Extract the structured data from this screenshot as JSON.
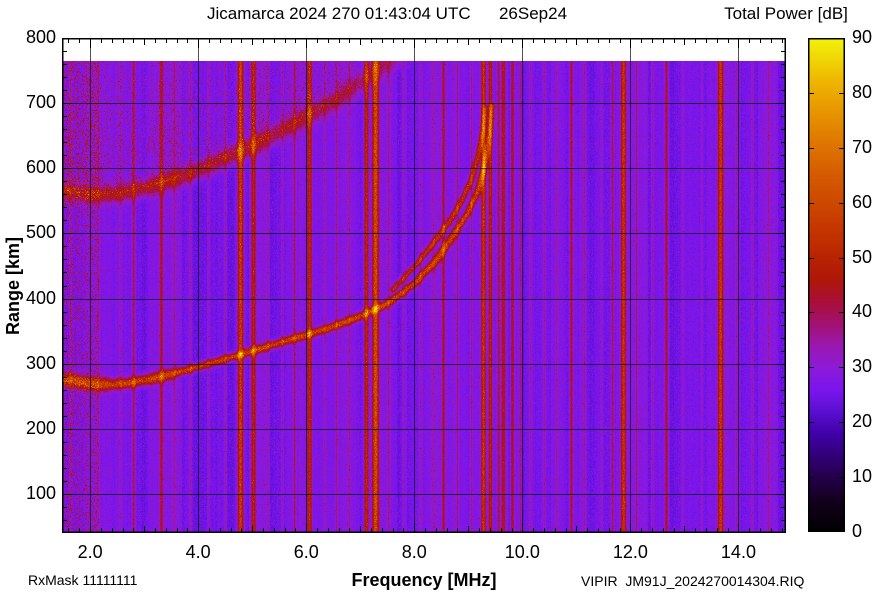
{
  "chart_data": {
    "type": "heatmap",
    "title_line": "Jicamarca 2024 270 01:43:04 UTC      26Sep24",
    "station": "Jicamarca",
    "timestamp_utc": "2024 270 01:43:04 UTC",
    "date_label": "26Sep24",
    "xlabel": "Frequency [MHz]",
    "ylabel": "Range [km]",
    "annotations": {
      "bottom_left": "RxMask 11111111",
      "bottom_right": "VIPIR  JM91J_2024270014304.RIQ"
    },
    "x_axis": {
      "min": 1.48,
      "max": 14.88,
      "minor_step": 0.2,
      "ticks": [
        {
          "v": 2,
          "label": "2.0"
        },
        {
          "v": 4,
          "label": "4.0"
        },
        {
          "v": 6,
          "label": "6.0"
        },
        {
          "v": 8,
          "label": "8.0"
        },
        {
          "v": 10,
          "label": "10.0"
        },
        {
          "v": 12,
          "label": "12.0"
        },
        {
          "v": 14,
          "label": "14.0"
        }
      ]
    },
    "y_axis": {
      "min": 40,
      "max": 800,
      "minor_step": 20,
      "ticks": [
        {
          "v": 100,
          "label": "100"
        },
        {
          "v": 200,
          "label": "200"
        },
        {
          "v": 300,
          "label": "300"
        },
        {
          "v": 400,
          "label": "400"
        },
        {
          "v": 500,
          "label": "500"
        },
        {
          "v": 600,
          "label": "600"
        },
        {
          "v": 700,
          "label": "700"
        },
        {
          "v": 800,
          "label": "800"
        }
      ]
    },
    "data_top_km": 765,
    "background_db": 26,
    "colorbar": {
      "title": "Total Power [dB]",
      "min": 0,
      "max": 90,
      "ticks": [
        {
          "v": 0,
          "label": "0"
        },
        {
          "v": 10,
          "label": "10"
        },
        {
          "v": 20,
          "label": "20"
        },
        {
          "v": 30,
          "label": "30"
        },
        {
          "v": 40,
          "label": "40"
        },
        {
          "v": 50,
          "label": "50"
        },
        {
          "v": 60,
          "label": "60"
        },
        {
          "v": 70,
          "label": "70"
        },
        {
          "v": 80,
          "label": "80"
        },
        {
          "v": 90,
          "label": "90"
        }
      ],
      "stops": [
        [
          0,
          "#000000"
        ],
        [
          6,
          "#14001e"
        ],
        [
          12,
          "#2b0060"
        ],
        [
          18,
          "#4000a8"
        ],
        [
          22,
          "#5a0fd0"
        ],
        [
          26,
          "#7a15ec"
        ],
        [
          30,
          "#8c1ad8"
        ],
        [
          34,
          "#9a18b0"
        ],
        [
          38,
          "#a31270"
        ],
        [
          42,
          "#a80f38"
        ],
        [
          46,
          "#ae1608"
        ],
        [
          52,
          "#bd2a00"
        ],
        [
          58,
          "#c94000"
        ],
        [
          66,
          "#d65e00"
        ],
        [
          74,
          "#e38600"
        ],
        [
          82,
          "#eeb400"
        ],
        [
          90,
          "#f2f20a"
        ]
      ]
    },
    "rfi_stripes": [
      {
        "mhz": 1.62,
        "db": 7,
        "w": 1.2
      },
      {
        "mhz": 2.15,
        "db": 7,
        "w": 1.2
      },
      {
        "mhz": 2.55,
        "db": 6,
        "w": 1.0
      },
      {
        "mhz": 2.8,
        "db": 13,
        "w": 1.6
      },
      {
        "mhz": 3.32,
        "db": 15,
        "w": 1.8
      },
      {
        "mhz": 3.56,
        "db": 7,
        "w": 1.1
      },
      {
        "mhz": 3.85,
        "db": 9,
        "w": 1.2
      },
      {
        "mhz": 4.18,
        "db": 8,
        "w": 1.1
      },
      {
        "mhz": 4.5,
        "db": 9,
        "w": 1.2
      },
      {
        "mhz": 4.78,
        "db": 32,
        "w": 2.6
      },
      {
        "mhz": 5.02,
        "db": 22,
        "w": 2.0
      },
      {
        "mhz": 5.3,
        "db": 7,
        "w": 1.1
      },
      {
        "mhz": 5.56,
        "db": 8,
        "w": 1.1
      },
      {
        "mhz": 5.78,
        "db": 12,
        "w": 1.4
      },
      {
        "mhz": 6.06,
        "db": 22,
        "w": 2.0
      },
      {
        "mhz": 6.32,
        "db": 7,
        "w": 1.1
      },
      {
        "mhz": 6.55,
        "db": 9,
        "w": 1.2
      },
      {
        "mhz": 6.8,
        "db": 7,
        "w": 1.1
      },
      {
        "mhz": 7.1,
        "db": 24,
        "w": 2.0
      },
      {
        "mhz": 7.28,
        "db": 34,
        "w": 3.0
      },
      {
        "mhz": 7.52,
        "db": 8,
        "w": 1.1
      },
      {
        "mhz": 7.8,
        "db": 7,
        "w": 1.1
      },
      {
        "mhz": 8.1,
        "db": 7,
        "w": 1.1
      },
      {
        "mhz": 8.35,
        "db": 8,
        "w": 1.1
      },
      {
        "mhz": 8.53,
        "db": 14,
        "w": 1.5
      },
      {
        "mhz": 8.8,
        "db": 8,
        "w": 1.1
      },
      {
        "mhz": 9.05,
        "db": 10,
        "w": 1.2
      },
      {
        "mhz": 9.28,
        "db": 26,
        "w": 2.0
      },
      {
        "mhz": 9.4,
        "db": 22,
        "w": 1.8
      },
      {
        "mhz": 9.55,
        "db": 15,
        "w": 1.6
      },
      {
        "mhz": 9.65,
        "db": 20,
        "w": 2.2
      },
      {
        "mhz": 9.8,
        "db": 16,
        "w": 1.6
      },
      {
        "mhz": 9.95,
        "db": 12,
        "w": 1.4
      },
      {
        "mhz": 10.15,
        "db": 7,
        "w": 1.1
      },
      {
        "mhz": 10.4,
        "db": 8,
        "w": 1.1
      },
      {
        "mhz": 10.62,
        "db": 7,
        "w": 1.1
      },
      {
        "mhz": 10.9,
        "db": 16,
        "w": 1.7
      },
      {
        "mhz": 11.15,
        "db": 7,
        "w": 1.1
      },
      {
        "mhz": 11.45,
        "db": 8,
        "w": 1.1
      },
      {
        "mhz": 11.66,
        "db": 15,
        "w": 1.6
      },
      {
        "mhz": 11.86,
        "db": 26,
        "w": 2.2
      },
      {
        "mhz": 12.1,
        "db": 8,
        "w": 1.1
      },
      {
        "mhz": 12.4,
        "db": 9,
        "w": 1.3
      },
      {
        "mhz": 12.65,
        "db": 16,
        "w": 1.7
      },
      {
        "mhz": 12.95,
        "db": 7,
        "w": 1.1
      },
      {
        "mhz": 13.3,
        "db": 7,
        "w": 1.1
      },
      {
        "mhz": 13.65,
        "db": 28,
        "w": 2.4
      },
      {
        "mhz": 13.95,
        "db": 7,
        "w": 1.1
      },
      {
        "mhz": 14.25,
        "db": 8,
        "w": 1.2
      },
      {
        "mhz": 14.55,
        "db": 7,
        "w": 1.1
      }
    ],
    "traces": {
      "critical_frequency_mhz": 9.4,
      "f_region_echo": {
        "db": 31,
        "points_mhz_km": [
          [
            1.5,
            277
          ],
          [
            1.9,
            271
          ],
          [
            2.3,
            268
          ],
          [
            2.7,
            271
          ],
          [
            3.1,
            277
          ],
          [
            3.5,
            285
          ],
          [
            4.0,
            296
          ],
          [
            4.5,
            308
          ],
          [
            5.0,
            320
          ],
          [
            5.5,
            333
          ],
          [
            6.0,
            345
          ],
          [
            6.5,
            358
          ],
          [
            7.0,
            374
          ],
          [
            7.5,
            393
          ],
          [
            8.0,
            424
          ],
          [
            8.4,
            460
          ],
          [
            8.7,
            496
          ],
          [
            8.95,
            528
          ],
          [
            9.15,
            562
          ],
          [
            9.28,
            600
          ],
          [
            9.37,
            645
          ],
          [
            9.43,
            695
          ]
        ]
      },
      "x_mode_branch": {
        "db": 26,
        "points_mhz_km": [
          [
            7.6,
            415
          ],
          [
            8.0,
            450
          ],
          [
            8.35,
            486
          ],
          [
            8.65,
            520
          ],
          [
            8.88,
            552
          ],
          [
            9.05,
            584
          ],
          [
            9.17,
            618
          ],
          [
            9.26,
            655
          ],
          [
            9.32,
            693
          ]
        ]
      },
      "second_hop": {
        "db": 21,
        "points_mhz_km": [
          [
            1.5,
            565
          ],
          [
            2.0,
            559
          ],
          [
            2.5,
            561
          ],
          [
            3.0,
            570
          ],
          [
            3.5,
            582
          ],
          [
            4.0,
            597
          ],
          [
            4.5,
            616
          ],
          [
            5.0,
            634
          ],
          [
            5.5,
            656
          ],
          [
            6.0,
            679
          ],
          [
            6.5,
            702
          ],
          [
            7.0,
            733
          ],
          [
            7.4,
            756
          ],
          [
            7.65,
            768
          ]
        ]
      }
    },
    "noise": {
      "left_edge_noisy_below_mhz": 2.15,
      "diffuse_above_second_hop_below_mhz": 7.8
    }
  }
}
